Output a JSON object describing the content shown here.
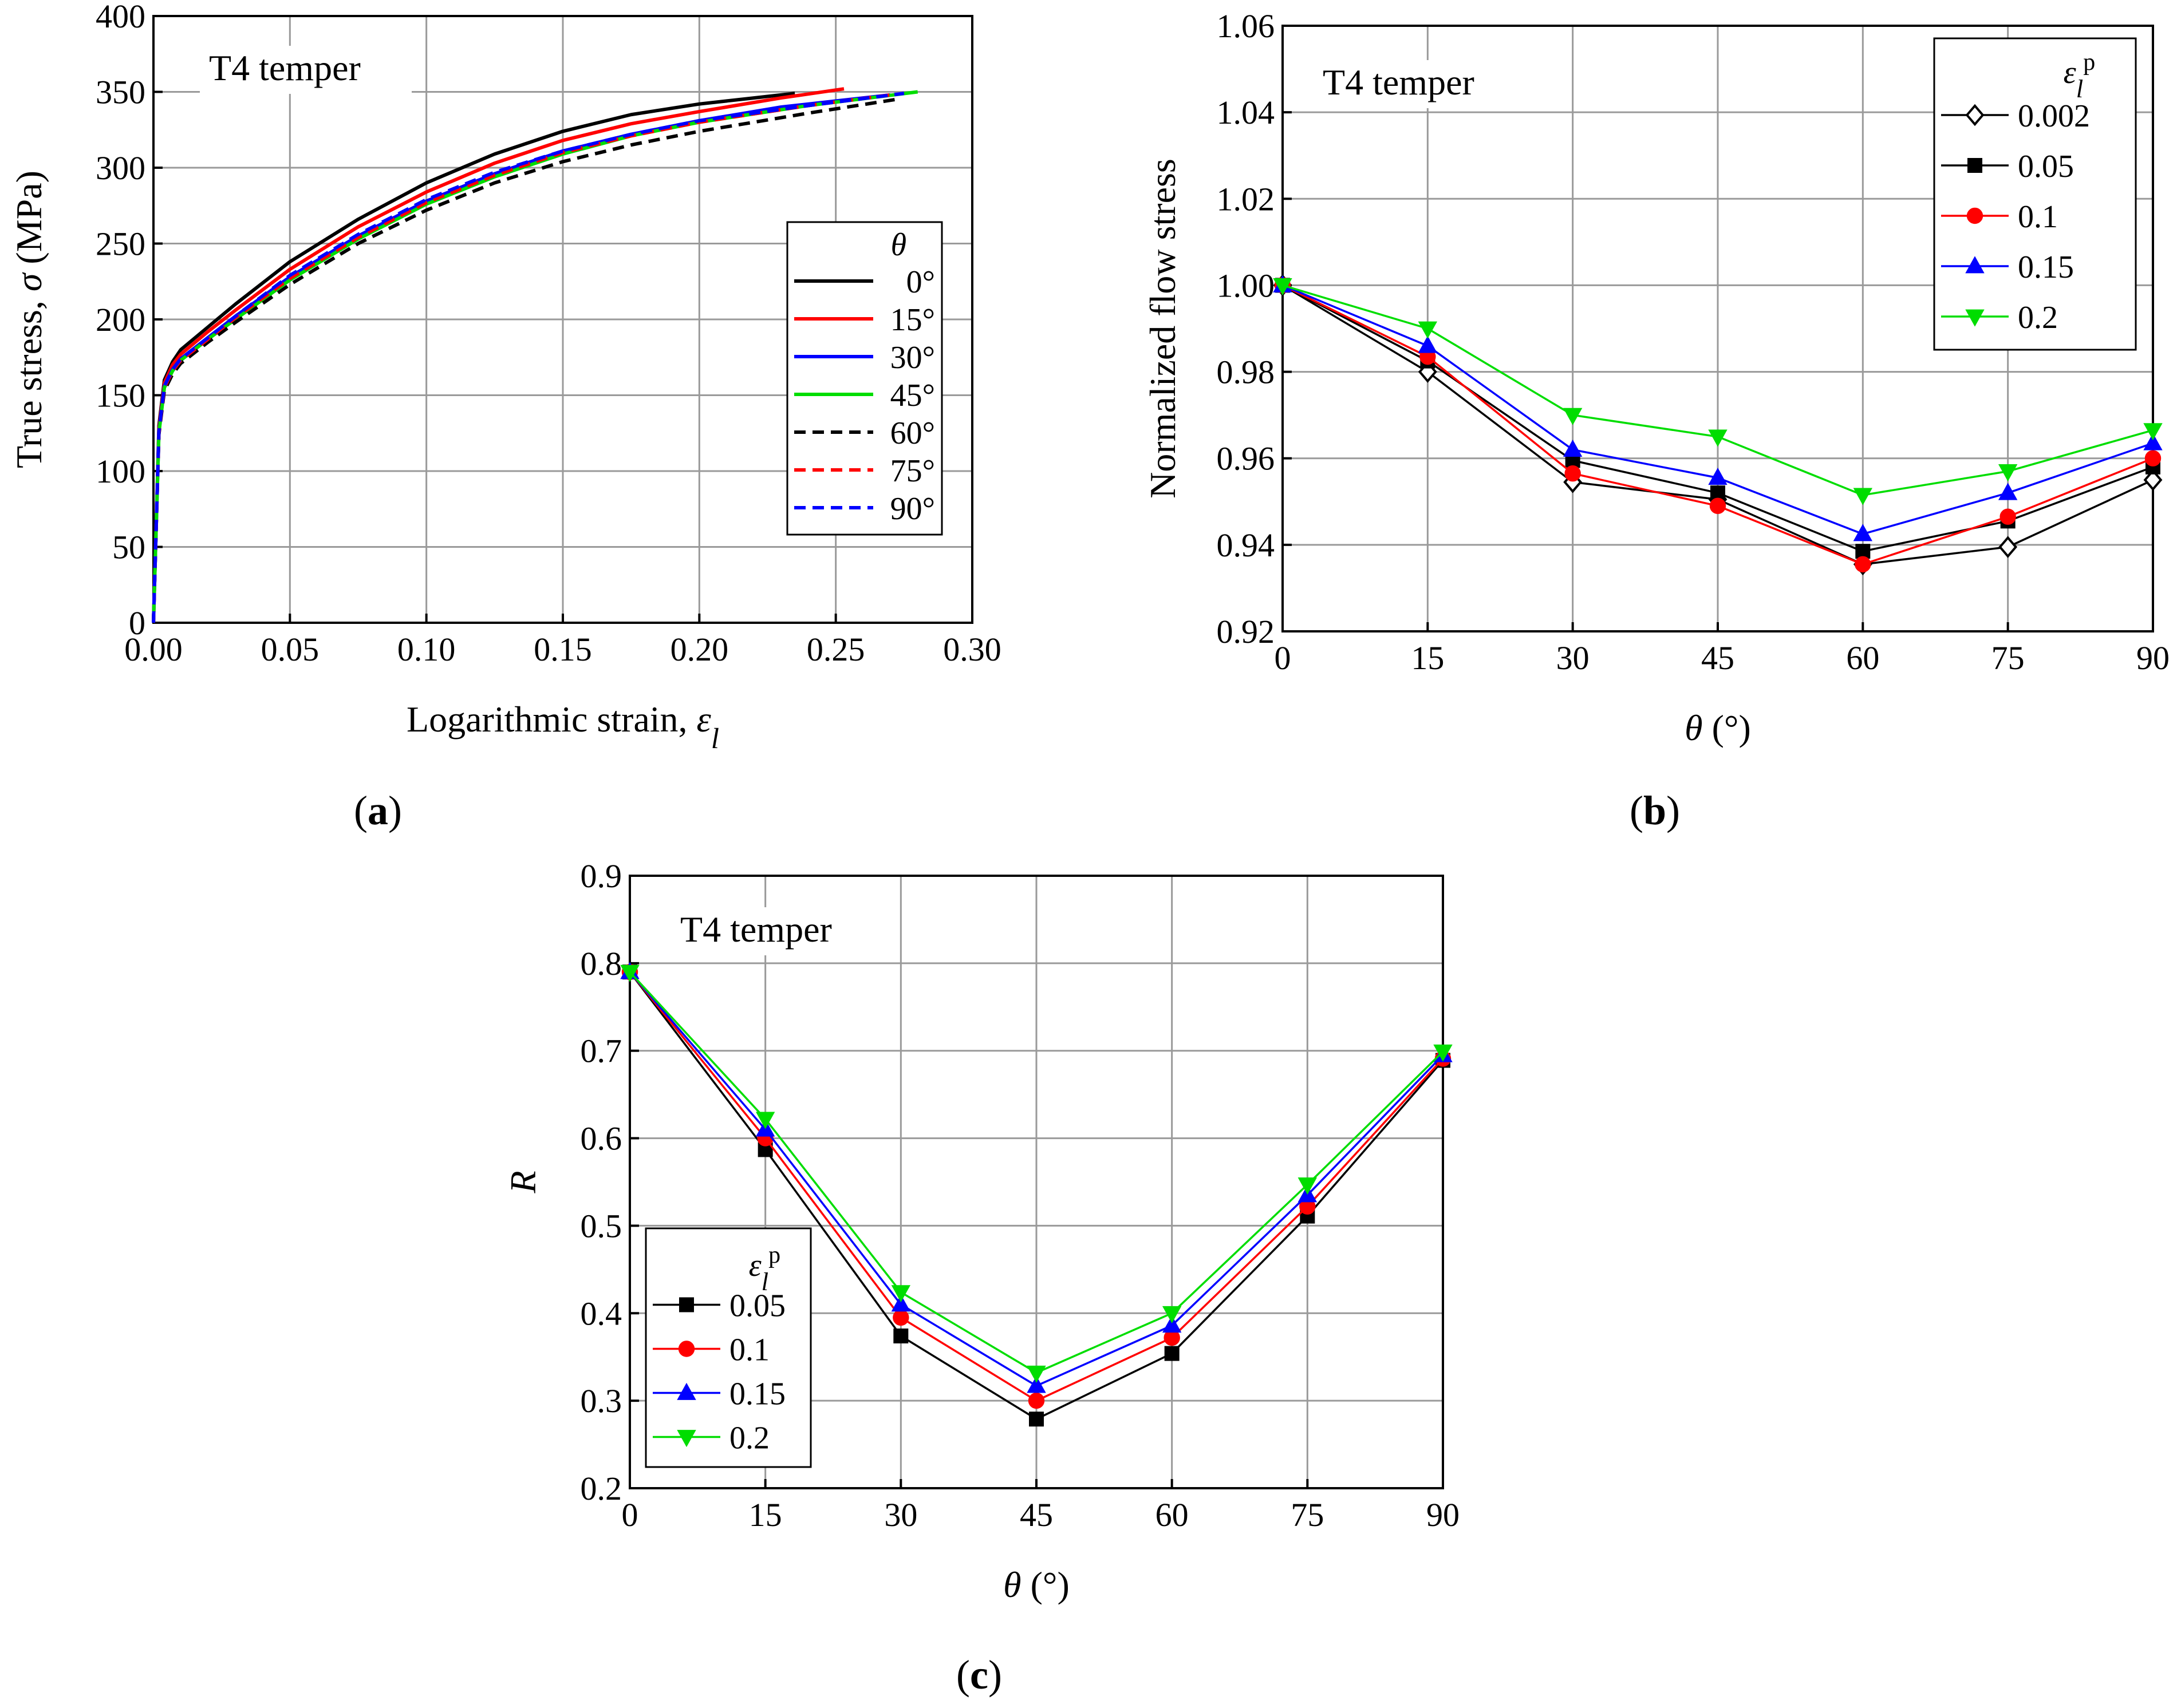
{
  "panels": {
    "a": {
      "label": "(a)",
      "letter": "a"
    },
    "b": {
      "label": "(b)",
      "letter": "b"
    },
    "c": {
      "label": "(c)",
      "letter": "c"
    }
  },
  "chart_data": [
    {
      "id": "a",
      "type": "line",
      "title": "",
      "annotation": "T4 temper",
      "xlabel": "Logarithmic strain, ε_l",
      "ylabel": "True stress, σ (MPa)",
      "xlim": [
        0,
        0.3
      ],
      "ylim": [
        0,
        400
      ],
      "xticks": [
        "0.00",
        "0.05",
        "0.10",
        "0.15",
        "0.20",
        "0.25",
        "0.30"
      ],
      "yticks": [
        "0",
        "50",
        "100",
        "150",
        "200",
        "250",
        "300",
        "350",
        "400"
      ],
      "legend_title": "θ",
      "series": [
        {
          "name": "0°",
          "color": "#000000",
          "dash": false,
          "x": [
            0,
            0.002,
            0.004,
            0.007,
            0.01,
            0.02,
            0.03,
            0.05,
            0.075,
            0.1,
            0.125,
            0.15,
            0.175,
            0.2,
            0.22,
            0.235
          ],
          "y": [
            0,
            130,
            160,
            172,
            180,
            195,
            210,
            238,
            266,
            290,
            309,
            324,
            335,
            342,
            346,
            349
          ]
        },
        {
          "name": "15°",
          "color": "#ff0000",
          "dash": false,
          "x": [
            0,
            0.002,
            0.004,
            0.007,
            0.01,
            0.02,
            0.03,
            0.05,
            0.075,
            0.1,
            0.125,
            0.15,
            0.175,
            0.2,
            0.23,
            0.253
          ],
          "y": [
            0,
            128,
            158,
            170,
            177,
            192,
            206,
            233,
            261,
            284,
            303,
            318,
            329,
            337,
            346,
            352
          ]
        },
        {
          "name": "30°",
          "color": "#0000ff",
          "dash": false,
          "x": [
            0,
            0.002,
            0.004,
            0.007,
            0.01,
            0.02,
            0.03,
            0.05,
            0.075,
            0.1,
            0.125,
            0.15,
            0.175,
            0.2,
            0.23,
            0.27
          ],
          "y": [
            0,
            126,
            156,
            167,
            174,
            188,
            202,
            228,
            255,
            278,
            296,
            311,
            322,
            331,
            340,
            348
          ]
        },
        {
          "name": "45°",
          "color": "#00dd00",
          "dash": false,
          "x": [
            0,
            0.002,
            0.004,
            0.007,
            0.01,
            0.02,
            0.03,
            0.05,
            0.075,
            0.1,
            0.125,
            0.15,
            0.175,
            0.2,
            0.24,
            0.28
          ],
          "y": [
            0,
            125,
            155,
            166,
            173,
            187,
            200,
            226,
            253,
            276,
            294,
            309,
            321,
            330,
            341,
            350
          ]
        },
        {
          "name": "60°",
          "color": "#000000",
          "dash": true,
          "x": [
            0,
            0.002,
            0.004,
            0.007,
            0.01,
            0.02,
            0.03,
            0.05,
            0.075,
            0.1,
            0.125,
            0.15,
            0.175,
            0.2,
            0.24,
            0.272
          ],
          "y": [
            0,
            124,
            153,
            164,
            171,
            185,
            198,
            223,
            250,
            272,
            290,
            304,
            315,
            324,
            336,
            345
          ]
        },
        {
          "name": "75°",
          "color": "#ff0000",
          "dash": true,
          "x": [
            0,
            0.002,
            0.004,
            0.007,
            0.01,
            0.02,
            0.03,
            0.05,
            0.075,
            0.1,
            0.125,
            0.15,
            0.175,
            0.2,
            0.24,
            0.27
          ],
          "y": [
            0,
            125,
            155,
            166,
            173,
            187,
            201,
            227,
            254,
            277,
            295,
            310,
            321,
            330,
            341,
            348
          ]
        },
        {
          "name": "90°",
          "color": "#0000ff",
          "dash": true,
          "x": [
            0,
            0.002,
            0.004,
            0.007,
            0.01,
            0.02,
            0.03,
            0.05,
            0.075,
            0.1,
            0.125,
            0.15,
            0.175,
            0.2,
            0.24,
            0.275
          ],
          "y": [
            0,
            126,
            156,
            167,
            174,
            188,
            202,
            229,
            256,
            279,
            297,
            311,
            322,
            331,
            341,
            349
          ]
        }
      ]
    },
    {
      "id": "b",
      "type": "line",
      "title": "",
      "annotation": "T4 temper",
      "xlabel": "θ (°)",
      "ylabel": "Normalized flow stress",
      "xlim": [
        0,
        90
      ],
      "ylim": [
        0.92,
        1.06
      ],
      "xticks": [
        "0",
        "15",
        "30",
        "45",
        "60",
        "75",
        "90"
      ],
      "yticks": [
        "0.92",
        "0.94",
        "0.96",
        "0.98",
        "1.00",
        "1.02",
        "1.04",
        "1.06"
      ],
      "legend_title": "ε_l^p",
      "categories": [
        0,
        15,
        30,
        45,
        60,
        75,
        90
      ],
      "series": [
        {
          "name": "0.002",
          "color": "#000000",
          "marker": "diamond-open",
          "values": [
            1.0,
            0.98,
            0.9545,
            0.9505,
            0.9355,
            0.9395,
            0.955
          ]
        },
        {
          "name": "0.05",
          "color": "#000000",
          "marker": "square",
          "values": [
            1.0,
            0.9825,
            0.9595,
            0.952,
            0.9385,
            0.9455,
            0.958
          ]
        },
        {
          "name": "0.1",
          "color": "#ff0000",
          "marker": "circle",
          "values": [
            1.0,
            0.9835,
            0.9565,
            0.949,
            0.9355,
            0.9465,
            0.96
          ]
        },
        {
          "name": "0.15",
          "color": "#0000ff",
          "marker": "triangle-up",
          "values": [
            1.0,
            0.986,
            0.962,
            0.9555,
            0.9425,
            0.952,
            0.9635
          ]
        },
        {
          "name": "0.2",
          "color": "#00dd00",
          "marker": "triangle-down",
          "values": [
            1.0,
            0.99,
            0.97,
            0.965,
            0.9515,
            0.957,
            0.9665
          ]
        }
      ]
    },
    {
      "id": "c",
      "type": "line",
      "title": "",
      "annotation": "T4 temper",
      "xlabel": "θ (°)",
      "ylabel": "R",
      "xlim": [
        0,
        90
      ],
      "ylim": [
        0.2,
        0.9
      ],
      "xticks": [
        "0",
        "15",
        "30",
        "45",
        "60",
        "75",
        "90"
      ],
      "yticks": [
        "0.2",
        "0.3",
        "0.4",
        "0.5",
        "0.6",
        "0.7",
        "0.8",
        "0.9"
      ],
      "legend_title": "ε_l^p",
      "categories": [
        0,
        15,
        30,
        45,
        60,
        75,
        90
      ],
      "series": [
        {
          "name": "0.05",
          "color": "#000000",
          "marker": "square",
          "values": [
            0.79,
            0.587,
            0.374,
            0.279,
            0.354,
            0.511,
            0.689
          ]
        },
        {
          "name": "0.1",
          "color": "#ff0000",
          "marker": "circle",
          "values": [
            0.79,
            0.6,
            0.395,
            0.3,
            0.372,
            0.522,
            0.691
          ]
        },
        {
          "name": "0.15",
          "color": "#0000ff",
          "marker": "triangle-up",
          "values": [
            0.79,
            0.61,
            0.41,
            0.317,
            0.386,
            0.535,
            0.695
          ]
        },
        {
          "name": "0.2",
          "color": "#00dd00",
          "marker": "triangle-down",
          "values": [
            0.79,
            0.622,
            0.424,
            0.332,
            0.4,
            0.547,
            0.699
          ]
        }
      ]
    }
  ]
}
